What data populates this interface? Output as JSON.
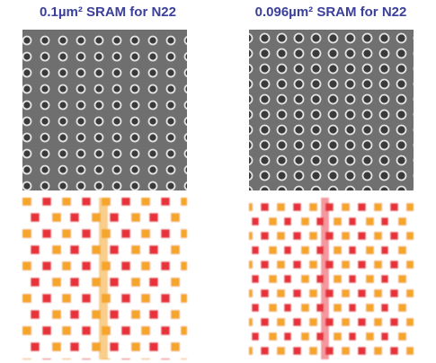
{
  "panels": [
    {
      "title": "0.1µm² SRAM for N22"
    },
    {
      "title": "0.096µm² SRAM for N22"
    }
  ]
}
